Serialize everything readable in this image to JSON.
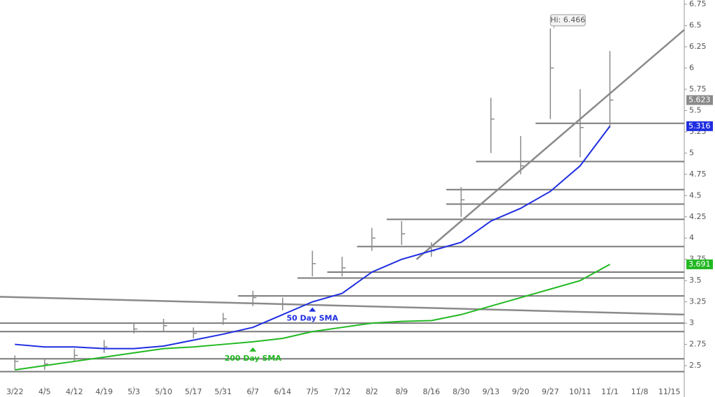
{
  "chart_data": {
    "type": "ohlc",
    "categories": [
      "3/22",
      "4/5",
      "4/12",
      "4/19",
      "5/3",
      "5/10",
      "5/17",
      "5/31",
      "6/7",
      "6/14",
      "7/5",
      "7/12",
      "8/2",
      "8/9",
      "8/16",
      "8/30",
      "9/13",
      "9/20",
      "9/27",
      "10/11",
      "11/1",
      "11/8",
      "11/15"
    ],
    "series": [
      {
        "color": "#8a8a8a",
        "last": 5.623,
        "last_color": "#8a8a8a",
        "high": [
          2.62,
          2.58,
          2.7,
          2.8,
          3.0,
          3.05,
          2.95,
          3.12,
          3.38,
          3.3,
          3.85,
          3.78,
          4.12,
          4.2,
          3.95,
          4.6,
          5.65,
          5.2,
          6.466,
          5.75,
          6.2,
          null,
          null
        ],
        "low": [
          2.45,
          2.45,
          2.55,
          2.65,
          2.88,
          2.9,
          2.82,
          2.98,
          3.2,
          3.15,
          3.55,
          3.55,
          3.85,
          3.92,
          3.78,
          4.25,
          5.0,
          4.75,
          5.4,
          4.95,
          5.3,
          null,
          null
        ],
        "values": [
          2.55,
          2.52,
          2.62,
          2.72,
          2.93,
          2.97,
          2.88,
          3.05,
          3.3,
          3.22,
          3.7,
          3.65,
          4.0,
          4.05,
          3.85,
          4.45,
          5.4,
          4.85,
          6.0,
          5.3,
          5.623,
          null,
          null
        ]
      },
      {
        "name": "50 Day SMA",
        "color": "#1f2ee0",
        "last": 5.316,
        "last_color": "#1f2ee0",
        "values": [
          2.75,
          2.72,
          2.72,
          2.7,
          2.7,
          2.73,
          2.8,
          2.87,
          2.95,
          3.1,
          3.25,
          3.35,
          3.6,
          3.75,
          3.85,
          3.95,
          4.2,
          4.35,
          4.55,
          4.85,
          5.316,
          null,
          null
        ]
      },
      {
        "name": "200 Day SMA",
        "color": "#22b822",
        "last": 3.691,
        "last_color": "#22b822",
        "values": [
          2.45,
          2.5,
          2.55,
          2.6,
          2.65,
          2.7,
          2.72,
          2.75,
          2.78,
          2.82,
          2.9,
          2.95,
          3.0,
          3.02,
          3.03,
          3.1,
          3.2,
          3.3,
          3.4,
          3.5,
          3.691,
          null,
          null
        ]
      }
    ],
    "levels": [
      {
        "value": 2.43,
        "start": "3/22"
      },
      {
        "value": 2.58,
        "start": "3/22"
      },
      {
        "value": 2.9,
        "start": "3/22"
      },
      {
        "value": 3.0,
        "start": "3/22"
      },
      {
        "value": 3.32,
        "start": "6/7"
      },
      {
        "value": 3.53,
        "start": "7/5"
      },
      {
        "value": 3.6,
        "start": "7/12"
      },
      {
        "value": 3.9,
        "start": "8/2"
      },
      {
        "value": 4.22,
        "start": "8/9"
      },
      {
        "value": 4.4,
        "start": "8/30"
      },
      {
        "value": 4.57,
        "start": "8/30"
      },
      {
        "value": 4.9,
        "start": "9/13"
      },
      {
        "value": 5.35,
        "start": "9/27"
      }
    ],
    "trendlines": [
      {
        "start": "3/22",
        "y_start": 3.31,
        "y_end": 3.1
      },
      {
        "start": "8/16",
        "y_start": 3.75,
        "y_end": 6.45
      }
    ],
    "annotations": [
      {
        "text": "Hi: 6.466",
        "at": "9/27",
        "value": 6.466
      }
    ],
    "ylim": [
      2.25,
      6.8
    ],
    "yticks": [
      2.5,
      2.75,
      3,
      3.25,
      3.5,
      3.75,
      4,
      4.25,
      4.5,
      4.75,
      5,
      5.25,
      5.5,
      5.75,
      6,
      6.25,
      6.5,
      6.75
    ]
  }
}
